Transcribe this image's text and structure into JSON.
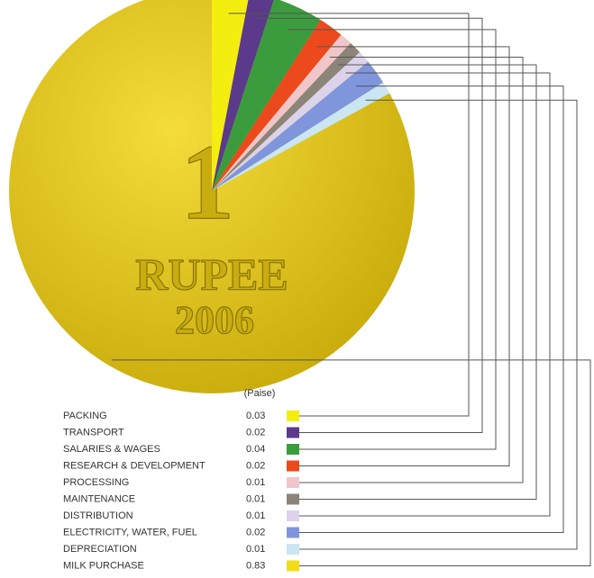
{
  "chart_data": {
    "type": "pie",
    "unit_label": "(Paise)",
    "coin_texts": [
      "1",
      "RUPEE",
      "2006"
    ],
    "categories": [
      "PACKING",
      "TRANSPORT",
      "SALARIES & WAGES",
      "RESEARCH & DEVELOPMENT",
      "PROCESSING",
      "MAINTENANCE",
      "DISTRIBUTION",
      "ELECTRICITY, WATER, FUEL",
      "DEPRECIATION",
      "MILK PURCHASE"
    ],
    "values": [
      0.03,
      0.02,
      0.04,
      0.02,
      0.01,
      0.01,
      0.01,
      0.02,
      0.01,
      0.83
    ],
    "colors": [
      "#f4ee10",
      "#5b3a8c",
      "#3b9c3e",
      "#ec4a1c",
      "#f1c6ca",
      "#8c8479",
      "#dcd2ea",
      "#7f95dc",
      "#c9e6f2",
      "#f0dc18"
    ]
  }
}
